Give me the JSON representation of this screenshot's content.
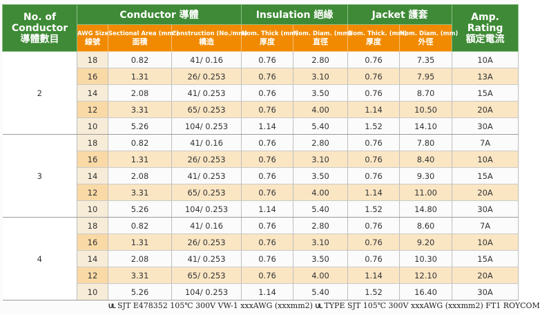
{
  "headers": {
    "no_of_conductor": "No. of",
    "no_of_conductor_2": "Conductor",
    "no_of_conductor_zh": "導體數目",
    "conductor": "Conductor 導體",
    "insulation": "Insulation 絕緣",
    "jacket": "Jacket 護套",
    "amp": "Amp.",
    "amp_2": "Rating",
    "amp_zh": "額定電流",
    "sub": {
      "awg_en": "AWG Size",
      "awg_zh": "線號",
      "area_en": "Sectional Area (mm²)",
      "area_zh": "面積",
      "construction_en": "Construction (No./mm)",
      "construction_zh": "構造",
      "ins_thick_en": "Nom. Thick (mm)",
      "ins_thick_zh": "厚度",
      "ins_diam_en": "Nom. Diam. (mm)",
      "ins_diam_zh": "直徑",
      "jac_thick_en": "Nom. Thick. (mm)",
      "jac_thick_zh": "厚度",
      "jac_diam_en": "Nom. Diam. (mm)",
      "jac_diam_zh": "外徑"
    }
  },
  "groups": [
    {
      "conductors": "2",
      "rows": [
        [
          "18",
          "0.82",
          "41/ 0.16",
          "0.76",
          "2.80",
          "0.76",
          "7.35",
          "10A"
        ],
        [
          "16",
          "1.31",
          "26/ 0.253",
          "0.76",
          "3.10",
          "0.76",
          "7.95",
          "13A"
        ],
        [
          "14",
          "2.08",
          "41/ 0.253",
          "0.76",
          "3.50",
          "0.76",
          "8.70",
          "15A"
        ],
        [
          "12",
          "3.31",
          "65/ 0.253",
          "0.76",
          "4.00",
          "1.14",
          "10.50",
          "20A"
        ],
        [
          "10",
          "5.26",
          "104/ 0.253",
          "1.14",
          "5.40",
          "1.52",
          "14.10",
          "30A"
        ]
      ]
    },
    {
      "conductors": "3",
      "rows": [
        [
          "18",
          "0.82",
          "41/ 0.16",
          "0.76",
          "2.80",
          "0.76",
          "7.80",
          "7A"
        ],
        [
          "16",
          "1.31",
          "26/ 0.253",
          "0.76",
          "3.10",
          "0.76",
          "8.40",
          "10A"
        ],
        [
          "14",
          "2.08",
          "41/ 0.253",
          "0.76",
          "3.50",
          "0.76",
          "9.30",
          "15A"
        ],
        [
          "12",
          "3.31",
          "65/ 0.253",
          "0.76",
          "4.00",
          "1.14",
          "11.00",
          "20A"
        ],
        [
          "10",
          "5.26",
          "104/ 0.253",
          "1.14",
          "5.40",
          "1.52",
          "14.80",
          "30A"
        ]
      ]
    },
    {
      "conductors": "4",
      "rows": [
        [
          "18",
          "0.82",
          "41/ 0.16",
          "0.76",
          "2.80",
          "0.76",
          "8.60",
          "7A"
        ],
        [
          "16",
          "1.31",
          "26/ 0.253",
          "0.76",
          "3.10",
          "0.76",
          "9.20",
          "10A"
        ],
        [
          "14",
          "2.08",
          "41/ 0.253",
          "0.76",
          "3.50",
          "0.76",
          "10.30",
          "15A"
        ],
        [
          "12",
          "3.31",
          "65/ 0.253",
          "0.76",
          "4.00",
          "1.14",
          "12.10",
          "20A"
        ],
        [
          "10",
          "5.26",
          "104/ 0.253",
          "1.14",
          "5.40",
          "1.52",
          "16.40",
          "30A"
        ]
      ]
    }
  ],
  "footer": {
    "ul_mark_1": "UL",
    "text_1": "SJT  E478352 105℃ 300V VW-1  xxxAWG (xxxmm2)",
    "ul_mark_2": "UL",
    "text_2": "TYPE SJT 105℃ 300V xxxAWG (xxxmm2)  FT1   ROYCOM"
  },
  "colors": {
    "header_green": "#3e8a36",
    "header_orange": "#f18a00",
    "row_highlight": "#fbe6c4"
  }
}
